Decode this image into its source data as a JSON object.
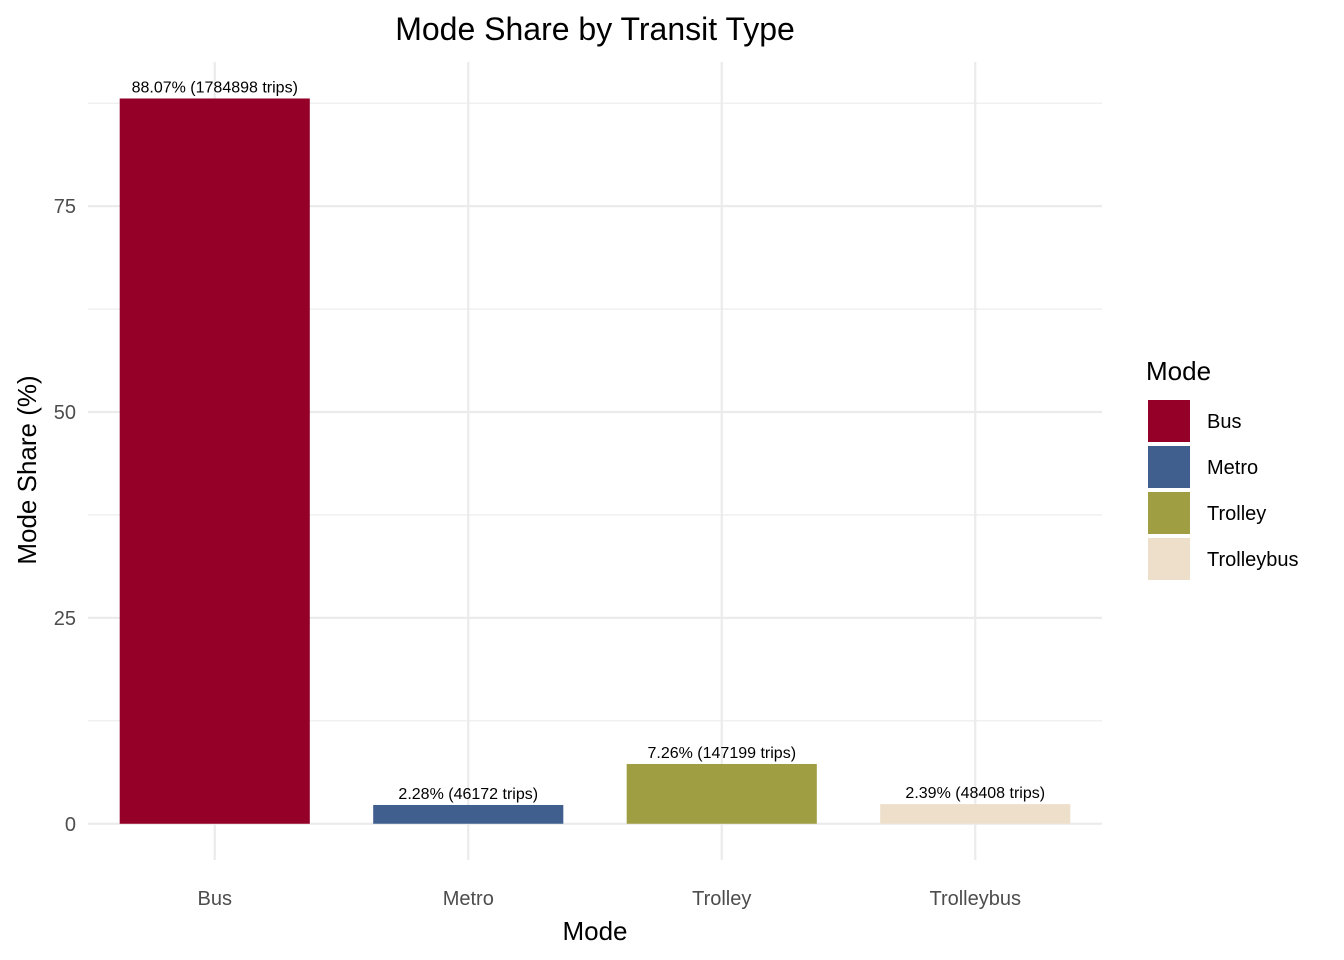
{
  "chart_data": {
    "type": "bar",
    "title": "Mode Share by Transit Type",
    "xlabel": "Mode",
    "ylabel": "Mode Share (%)",
    "categories": [
      "Bus",
      "Metro",
      "Trolley",
      "Trolleybus"
    ],
    "values": [
      88.07,
      2.28,
      7.26,
      2.39
    ],
    "data_labels": [
      "88.07% (1784898 trips)",
      "2.28% (46172 trips)",
      "7.26% (147199 trips)",
      "2.39% (48408 trips)"
    ],
    "colors": [
      "#950029",
      "#405F8F",
      "#9F9E42",
      "#EEDFCB"
    ],
    "ylim": [
      -4.4,
      92.5
    ],
    "yticks": [
      0,
      25,
      50,
      75
    ],
    "ytick_labels": [
      "0",
      "25",
      "50",
      "75"
    ],
    "grid": true,
    "legend": {
      "title": "Mode",
      "position": "right",
      "items": [
        "Bus",
        "Metro",
        "Trolley",
        "Trolleybus"
      ]
    }
  }
}
